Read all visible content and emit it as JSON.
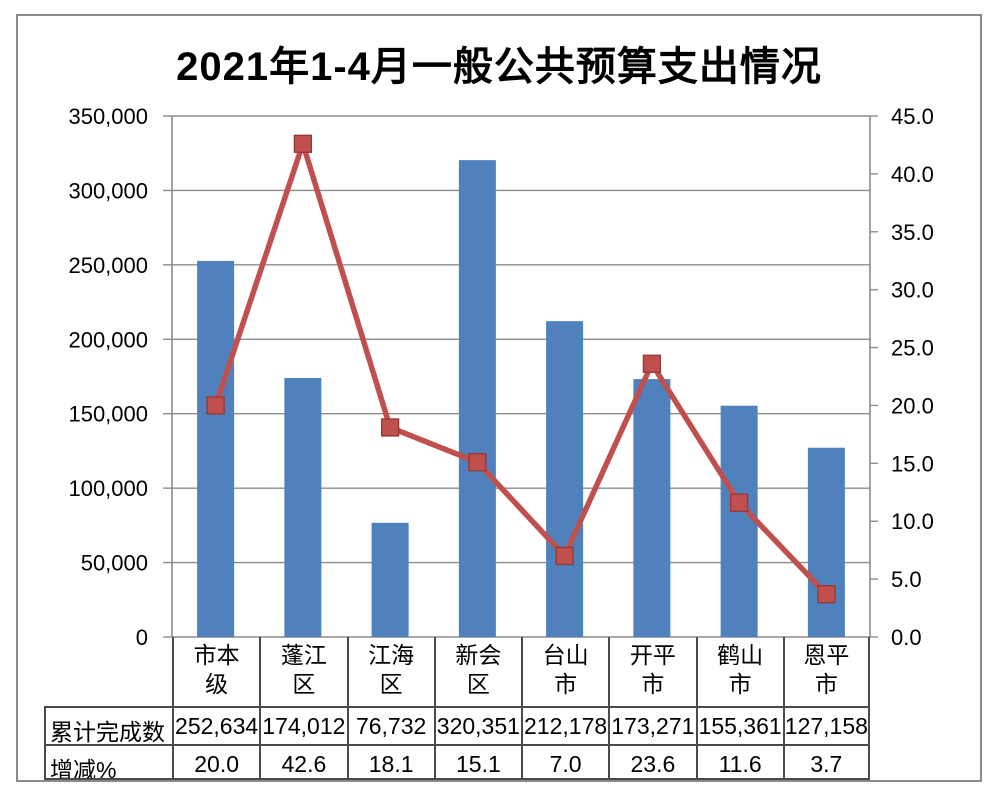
{
  "title": "2021年1-4月一般公共预算支出情况",
  "colors": {
    "background": "#ffffff",
    "frame_border": "#8a8a8a",
    "bar": "#4f81bd",
    "line": "#c0504d",
    "marker": "#c0504d",
    "marker_border": "#953735",
    "gridline": "#8c8c8c",
    "axis": "#8c8c8c",
    "table_border": "#4a4a4a",
    "text": "#000000"
  },
  "chart_data": {
    "type": "bar+line combo with data table",
    "title": "2021年1-4月一般公共预算支出情况",
    "categories": [
      "市本级",
      "蓬江区",
      "江海区",
      "新会区",
      "台山市",
      "开平市",
      "鹤山市",
      "恩平市"
    ],
    "category_lines": [
      [
        "市本",
        "级"
      ],
      [
        "蓬江",
        "区"
      ],
      [
        "江海",
        "区"
      ],
      [
        "新会",
        "区"
      ],
      [
        "台山",
        "市"
      ],
      [
        "开平",
        "市"
      ],
      [
        "鹤山",
        "市"
      ],
      [
        "恩平",
        "市"
      ]
    ],
    "series": [
      {
        "name": "累计完成数",
        "type": "bar",
        "axis": "left",
        "values": [
          252634,
          174012,
          76732,
          320351,
          212178,
          173271,
          155361,
          127158
        ],
        "labels": [
          "252,634",
          "174,012",
          "76,732",
          "320,351",
          "212,178",
          "173,271",
          "155,361",
          "127,158"
        ]
      },
      {
        "name": "增减%",
        "type": "line",
        "axis": "right",
        "values": [
          20.0,
          42.6,
          18.1,
          15.1,
          7.0,
          23.6,
          11.6,
          3.7
        ],
        "labels": [
          "20.0",
          "42.6",
          "18.1",
          "15.1",
          "7.0",
          "23.6",
          "11.6",
          "3.7"
        ]
      }
    ],
    "left_axis": {
      "min": 0,
      "max": 350000,
      "step": 50000,
      "tick_labels": [
        "0",
        "50,000",
        "100,000",
        "150,000",
        "200,000",
        "250,000",
        "300,000",
        "350,000"
      ]
    },
    "right_axis": {
      "min": 0,
      "max": 45,
      "step": 5,
      "tick_labels": [
        "0.0",
        "5.0",
        "10.0",
        "15.0",
        "20.0",
        "25.0",
        "30.0",
        "35.0",
        "40.0",
        "45.0"
      ]
    },
    "grid": true,
    "legend": "none"
  }
}
